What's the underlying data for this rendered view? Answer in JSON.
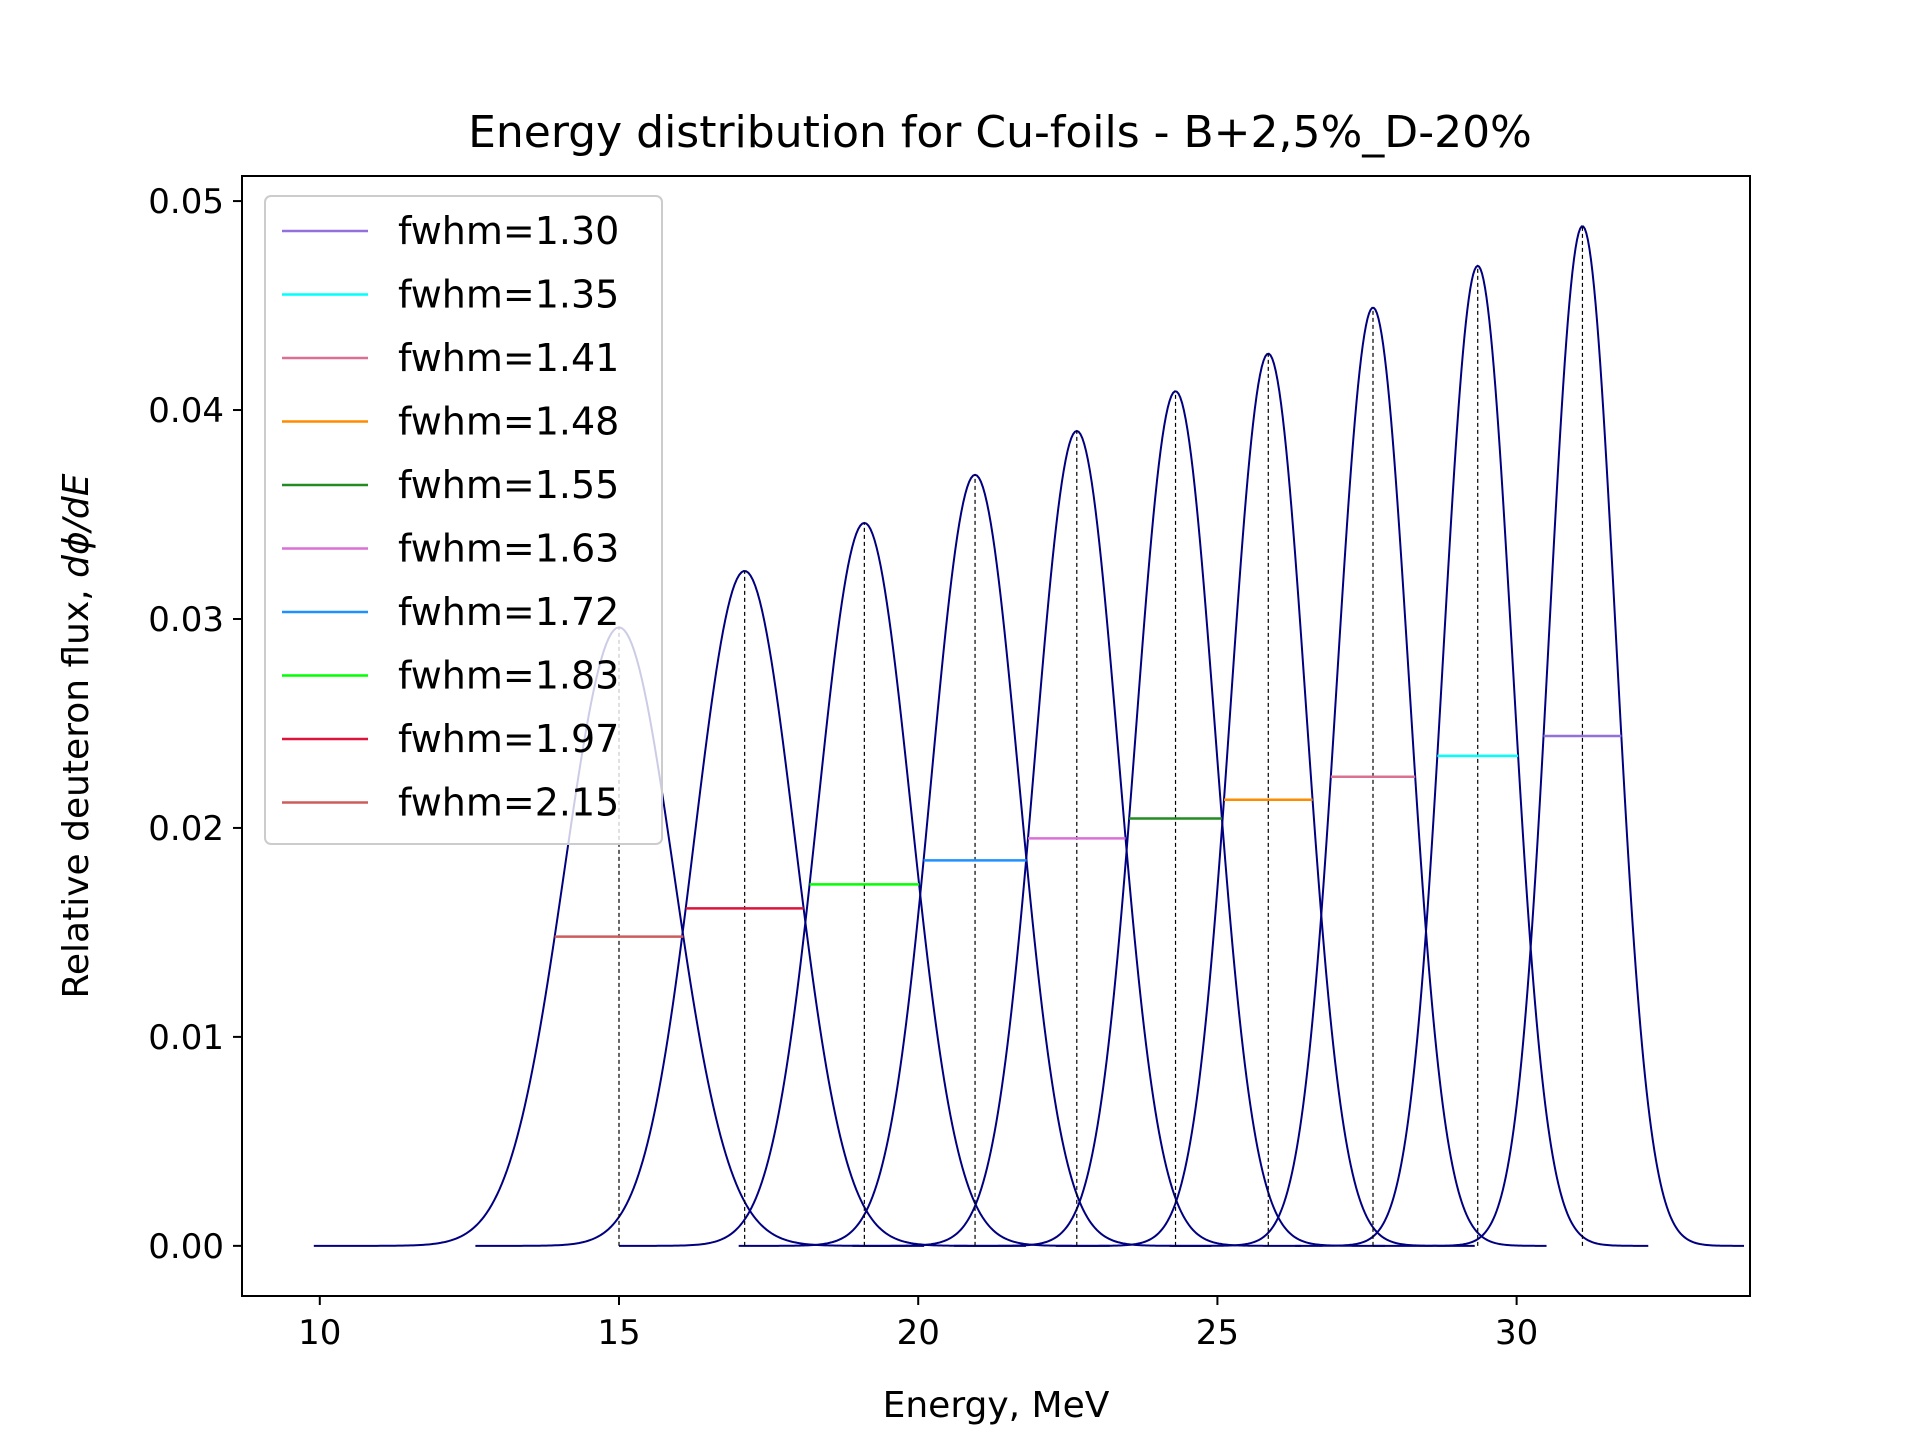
{
  "chart_data": {
    "type": "line",
    "title": "Energy distribution for Cu-foils - B+2,5%_D-20%",
    "xlabel": "Energy, MeV",
    "ylabel_prefix": "Relative deuteron flux, ",
    "ylabel_math": "dϕ/dE",
    "xlim": [
      8.7,
      33.9
    ],
    "ylim": [
      -0.0024,
      0.0512
    ],
    "x_ticks": [
      10,
      15,
      20,
      25,
      30
    ],
    "x_tick_labels": [
      "10",
      "15",
      "20",
      "25",
      "30"
    ],
    "y_ticks": [
      0.0,
      0.01,
      0.02,
      0.03,
      0.04,
      0.05
    ],
    "y_tick_labels": [
      "0.00",
      "0.01",
      "0.02",
      "0.03",
      "0.04",
      "0.05"
    ],
    "grid": false,
    "legend_position": "upper-left",
    "curve_color": "#000080",
    "peaks": [
      {
        "center": 15.0,
        "peak": 0.0296,
        "fwhm": 2.15,
        "range": [
          9.9,
          20.1
        ],
        "color": "#cd5c5c"
      },
      {
        "center": 17.1,
        "peak": 0.0323,
        "fwhm": 1.97,
        "range": [
          12.6,
          21.8
        ],
        "color": "#dc143c"
      },
      {
        "center": 19.1,
        "peak": 0.0346,
        "fwhm": 1.83,
        "range": [
          15.0,
          23.2
        ],
        "color": "#00ff00"
      },
      {
        "center": 20.95,
        "peak": 0.0369,
        "fwhm": 1.72,
        "range": [
          17.0,
          24.9
        ],
        "color": "#1e90ff"
      },
      {
        "center": 22.65,
        "peak": 0.039,
        "fwhm": 1.63,
        "range": [
          18.9,
          26.4
        ],
        "color": "#da70d6"
      },
      {
        "center": 24.3,
        "peak": 0.0409,
        "fwhm": 1.55,
        "range": [
          20.6,
          27.8
        ],
        "color": "#228b22"
      },
      {
        "center": 25.85,
        "peak": 0.0427,
        "fwhm": 1.48,
        "range": [
          22.3,
          29.3
        ],
        "color": "#ff8c00"
      },
      {
        "center": 27.6,
        "peak": 0.0449,
        "fwhm": 1.41,
        "range": [
          24.2,
          30.5
        ],
        "color": "#db7093"
      },
      {
        "center": 29.35,
        "peak": 0.0469,
        "fwhm": 1.35,
        "range": [
          26.3,
          32.2
        ],
        "color": "#00ffff"
      },
      {
        "center": 31.1,
        "peak": 0.0488,
        "fwhm": 1.3,
        "range": [
          27.6,
          33.8
        ],
        "color": "#9370db"
      }
    ],
    "legend": [
      {
        "label": "fwhm=1.30",
        "color": "#9370db"
      },
      {
        "label": "fwhm=1.35",
        "color": "#00ffff"
      },
      {
        "label": "fwhm=1.41",
        "color": "#db7093"
      },
      {
        "label": "fwhm=1.48",
        "color": "#ff8c00"
      },
      {
        "label": "fwhm=1.55",
        "color": "#228b22"
      },
      {
        "label": "fwhm=1.63",
        "color": "#da70d6"
      },
      {
        "label": "fwhm=1.72",
        "color": "#1e90ff"
      },
      {
        "label": "fwhm=1.83",
        "color": "#00ff00"
      },
      {
        "label": "fwhm=1.97",
        "color": "#dc143c"
      },
      {
        "label": "fwhm=2.15",
        "color": "#cd5c5c"
      }
    ]
  }
}
